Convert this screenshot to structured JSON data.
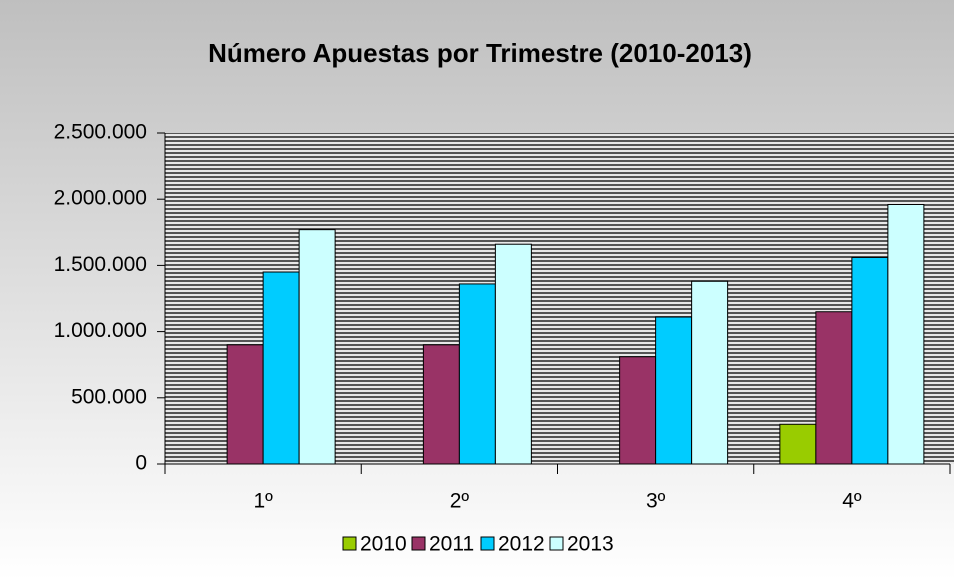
{
  "chart_data": {
    "type": "bar",
    "title": "Número Apuestas por Trimestre (2010-2013)",
    "categories": [
      "1º",
      "2º",
      "3º",
      "4º"
    ],
    "series": [
      {
        "name": "2010",
        "color": "#99cc00",
        "values": [
          null,
          null,
          null,
          300000
        ]
      },
      {
        "name": "2011",
        "color": "#993366",
        "values": [
          900000,
          900000,
          810000,
          1150000
        ]
      },
      {
        "name": "2012",
        "color": "#00ccff",
        "values": [
          1450000,
          1360000,
          1110000,
          1560000
        ]
      },
      {
        "name": "2013",
        "color": "#ccffff",
        "values": [
          1770000,
          1660000,
          1380000,
          1960000
        ]
      }
    ],
    "ylim": [
      0,
      2500000
    ],
    "yticks": [
      0,
      {
        "value": 500000,
        "label": "500.000"
      },
      {
        "value": 1000000,
        "label": "1.000.000"
      },
      {
        "value": 1500000,
        "label": "1.500.000"
      },
      {
        "value": 2000000,
        "label": "2.000.000"
      },
      {
        "value": 2500000,
        "label": "2.500.000"
      }
    ],
    "legend": "bottom"
  }
}
